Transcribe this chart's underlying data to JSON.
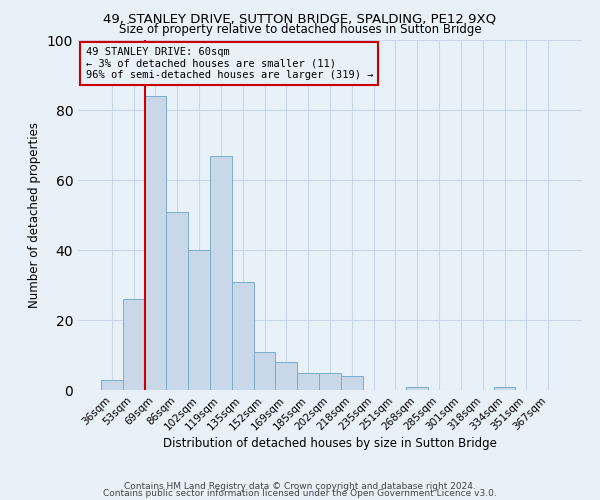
{
  "title": "49, STANLEY DRIVE, SUTTON BRIDGE, SPALDING, PE12 9XQ",
  "subtitle": "Size of property relative to detached houses in Sutton Bridge",
  "xlabel": "Distribution of detached houses by size in Sutton Bridge",
  "ylabel": "Number of detached properties",
  "bar_labels": [
    "36sqm",
    "53sqm",
    "69sqm",
    "86sqm",
    "102sqm",
    "119sqm",
    "135sqm",
    "152sqm",
    "169sqm",
    "185sqm",
    "202sqm",
    "218sqm",
    "235sqm",
    "251sqm",
    "268sqm",
    "285sqm",
    "301sqm",
    "318sqm",
    "334sqm",
    "351sqm",
    "367sqm"
  ],
  "bar_values": [
    3,
    26,
    84,
    51,
    40,
    67,
    31,
    11,
    8,
    5,
    5,
    4,
    0,
    0,
    1,
    0,
    0,
    0,
    1,
    0,
    0
  ],
  "bar_color": "#c8d8e8",
  "bar_edge_color": "#7aaccc",
  "vline_color": "#cc0000",
  "annotation_title": "49 STANLEY DRIVE: 60sqm",
  "annotation_line1": "← 3% of detached houses are smaller (11)",
  "annotation_line2": "96% of semi-detached houses are larger (319) →",
  "annotation_box_color": "#cc0000",
  "ylim": [
    0,
    100
  ],
  "yticks": [
    0,
    20,
    40,
    60,
    80,
    100
  ],
  "grid_color": "#c8d8e8",
  "bg_color": "#e8f0f8",
  "footer1": "Contains HM Land Registry data © Crown copyright and database right 2024.",
  "footer2": "Contains public sector information licensed under the Open Government Licence v3.0."
}
